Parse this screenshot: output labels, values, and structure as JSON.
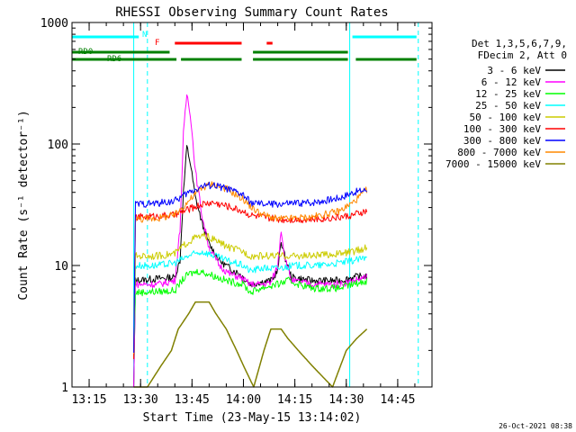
{
  "chart_data": {
    "type": "line",
    "title": "RHESSI Observing Summary Count Rates",
    "xlabel": "Start Time (23-May-15 13:14:02)",
    "ylabel": "Count Rate (s⁻¹ detector⁻¹)",
    "xlim": [
      "13:10",
      "14:55"
    ],
    "ylim": [
      1,
      1000
    ],
    "yscale": "log",
    "grid": false,
    "legend_position": "right",
    "x_ticks": [
      "13:15",
      "13:30",
      "13:45",
      "14:00",
      "14:15",
      "14:30",
      "14:45"
    ],
    "y_ticks": [
      "1",
      "10",
      "100",
      "1000"
    ],
    "timestamp": "26-Oct-2021 08:38",
    "legend_header": [
      "Det 1,3,5,6,7,9,",
      "FDecim 2, Att 0"
    ],
    "series": [
      {
        "name": "3 - 6 keV",
        "color": "#000000",
        "points": [
          [
            "13:28",
            0.9
          ],
          [
            "13:28.5",
            7.5
          ],
          [
            "13:35",
            7.8
          ],
          [
            "13:40",
            8
          ],
          [
            "13:41.5",
            11
          ],
          [
            "13:42.5",
            40
          ],
          [
            "13:43.5",
            95
          ],
          [
            "13:44.5",
            70
          ],
          [
            "13:46",
            36
          ],
          [
            "13:48",
            22
          ],
          [
            "13:50",
            15
          ],
          [
            "13:53",
            11
          ],
          [
            "13:56",
            9.5
          ],
          [
            "13:59",
            8.5
          ],
          [
            "14:02",
            7
          ],
          [
            "14:05",
            7.3
          ],
          [
            "14:08",
            7.5
          ],
          [
            "14:10",
            9
          ],
          [
            "14:11",
            16
          ],
          [
            "14:12",
            12
          ],
          [
            "14:14",
            8
          ],
          [
            "14:20",
            7.5
          ],
          [
            "14:28",
            7.5
          ],
          [
            "14:32",
            8
          ],
          [
            "14:36",
            8.2
          ]
        ]
      },
      {
        "name": "6 - 12 keV",
        "color": "#ff00ff",
        "points": [
          [
            "13:28",
            0.9
          ],
          [
            "13:28.5",
            7
          ],
          [
            "13:35",
            7
          ],
          [
            "13:40",
            7.5
          ],
          [
            "13:41.5",
            20
          ],
          [
            "13:42.5",
            120
          ],
          [
            "13:43.5",
            260
          ],
          [
            "13:44.5",
            180
          ],
          [
            "13:46",
            60
          ],
          [
            "13:48",
            25
          ],
          [
            "13:50",
            14
          ],
          [
            "13:53",
            10
          ],
          [
            "13:56",
            8.5
          ],
          [
            "13:59",
            8
          ],
          [
            "14:02",
            7
          ],
          [
            "14:05",
            7
          ],
          [
            "14:08",
            7.2
          ],
          [
            "14:10",
            10
          ],
          [
            "14:11",
            20
          ],
          [
            "14:12",
            12
          ],
          [
            "14:14",
            7.5
          ],
          [
            "14:20",
            7
          ],
          [
            "14:28",
            7
          ],
          [
            "14:32",
            7.5
          ],
          [
            "14:36",
            8
          ]
        ]
      },
      {
        "name": "12 - 25 keV",
        "color": "#00ff00",
        "points": [
          [
            "13:28",
            1.8
          ],
          [
            "13:28.5",
            6
          ],
          [
            "13:35",
            6.1
          ],
          [
            "13:40",
            6.2
          ],
          [
            "13:42",
            7.5
          ],
          [
            "13:44",
            8.5
          ],
          [
            "13:47",
            9
          ],
          [
            "13:50",
            8.5
          ],
          [
            "13:55",
            7.5
          ],
          [
            "14:00",
            7
          ],
          [
            "14:02",
            6
          ],
          [
            "14:05",
            6.5
          ],
          [
            "14:10",
            7
          ],
          [
            "14:13",
            7.5
          ],
          [
            "14:20",
            6.5
          ],
          [
            "14:28",
            6.5
          ],
          [
            "14:32",
            7
          ],
          [
            "14:36",
            7.5
          ]
        ]
      },
      {
        "name": "25 - 50 keV",
        "color": "#00ffff",
        "points": [
          [
            "13:28",
            1.8
          ],
          [
            "13:28.5",
            10
          ],
          [
            "13:35",
            10
          ],
          [
            "13:40",
            10.5
          ],
          [
            "13:44",
            12
          ],
          [
            "13:48",
            13
          ],
          [
            "13:50",
            12.5
          ],
          [
            "13:55",
            11
          ],
          [
            "14:00",
            10
          ],
          [
            "14:02",
            9
          ],
          [
            "14:05",
            9.5
          ],
          [
            "14:10",
            9.5
          ],
          [
            "14:15",
            10
          ],
          [
            "14:22",
            10
          ],
          [
            "14:28",
            10.5
          ],
          [
            "14:32",
            11
          ],
          [
            "14:36",
            11.5
          ]
        ]
      },
      {
        "name": "50 - 100 keV",
        "color": "#cccc00",
        "points": [
          [
            "13:28",
            1.8
          ],
          [
            "13:28.5",
            12
          ],
          [
            "13:35",
            12
          ],
          [
            "13:40",
            12.5
          ],
          [
            "13:43",
            15
          ],
          [
            "13:46",
            17
          ],
          [
            "13:49",
            17.5
          ],
          [
            "13:52",
            16
          ],
          [
            "13:56",
            14
          ],
          [
            "14:00",
            13
          ],
          [
            "14:02",
            12
          ],
          [
            "14:05",
            12
          ],
          [
            "14:10",
            12
          ],
          [
            "14:20",
            12
          ],
          [
            "14:28",
            12.5
          ],
          [
            "14:32",
            13
          ],
          [
            "14:36",
            14
          ]
        ]
      },
      {
        "name": "100 - 300 keV",
        "color": "#ff0000",
        "points": [
          [
            "13:28",
            1.8
          ],
          [
            "13:28.5",
            25
          ],
          [
            "13:35",
            25.5
          ],
          [
            "13:40",
            26
          ],
          [
            "13:44",
            29
          ],
          [
            "13:48",
            32
          ],
          [
            "13:51",
            33
          ],
          [
            "13:55",
            31
          ],
          [
            "14:00",
            28
          ],
          [
            "14:02",
            26
          ],
          [
            "14:05",
            25
          ],
          [
            "14:10",
            24
          ],
          [
            "14:20",
            24
          ],
          [
            "14:28",
            25
          ],
          [
            "14:32",
            26
          ],
          [
            "14:36",
            28
          ]
        ]
      },
      {
        "name": "300 - 800 keV",
        "color": "#0000ff",
        "points": [
          [
            "13:28",
            1.8
          ],
          [
            "13:28.5",
            32
          ],
          [
            "13:35",
            32.5
          ],
          [
            "13:40",
            34
          ],
          [
            "13:44",
            40
          ],
          [
            "13:48",
            45
          ],
          [
            "13:51",
            46
          ],
          [
            "13:55",
            43
          ],
          [
            "14:00",
            38
          ],
          [
            "14:02",
            33
          ],
          [
            "14:05",
            32
          ],
          [
            "14:10",
            32
          ],
          [
            "14:20",
            33
          ],
          [
            "14:28",
            36
          ],
          [
            "14:32",
            40
          ],
          [
            "14:36",
            42
          ]
        ]
      },
      {
        "name": "800 - 7000 keV",
        "color": "#ff8800",
        "points": [
          [
            "13:28",
            1.8
          ],
          [
            "13:28.5",
            24
          ],
          [
            "13:35",
            24.5
          ],
          [
            "13:40",
            26
          ],
          [
            "13:44",
            34
          ],
          [
            "13:48",
            44
          ],
          [
            "13:51",
            47
          ],
          [
            "13:55",
            43
          ],
          [
            "14:00",
            35
          ],
          [
            "14:03",
            29
          ],
          [
            "14:06",
            26
          ],
          [
            "14:10",
            24
          ],
          [
            "14:20",
            25
          ],
          [
            "14:28",
            28
          ],
          [
            "14:32",
            33
          ],
          [
            "14:36",
            42
          ]
        ]
      },
      {
        "name": "7000 - 15000 keV",
        "color": "#808000",
        "points": [
          [
            "13:28",
            0.9
          ],
          [
            "13:32",
            1
          ],
          [
            "13:36",
            1.5
          ],
          [
            "13:39",
            2
          ],
          [
            "13:41",
            3
          ],
          [
            "13:44",
            4
          ],
          [
            "13:46",
            5
          ],
          [
            "13:50",
            5
          ],
          [
            "13:52",
            4
          ],
          [
            "13:55",
            3
          ],
          [
            "13:58",
            2
          ],
          [
            "14:00",
            1.5
          ],
          [
            "14:03",
            1
          ],
          [
            "14:06",
            2
          ],
          [
            "14:08",
            3
          ],
          [
            "14:11",
            3
          ],
          [
            "14:13",
            2.5
          ],
          [
            "14:16",
            2
          ],
          [
            "14:20",
            1.5
          ],
          [
            "14:26",
            1
          ],
          [
            "14:30",
            2
          ],
          [
            "14:33",
            2.5
          ],
          [
            "14:36",
            3
          ]
        ]
      }
    ],
    "flag_bars": [
      {
        "label": "N",
        "color": "#00ffff",
        "segments": [
          [
            "13:10",
            "13:30"
          ],
          [
            "14:31",
            "14:51"
          ]
        ]
      },
      {
        "label": "F",
        "color": "#ff0000",
        "segments": [
          [
            "13:40",
            "14:00"
          ],
          [
            "14:06",
            "14:09"
          ]
        ]
      },
      {
        "label": "RD0",
        "color": "#008000",
        "segments": [
          [
            "13:10",
            "13:39"
          ],
          [
            "14:02",
            "14:31"
          ]
        ]
      },
      {
        "label": "RD6",
        "color": "#008000",
        "segments": [
          [
            "13:10",
            "13:41"
          ],
          [
            "13:41",
            "14:00"
          ],
          [
            "14:02",
            "14:31"
          ],
          [
            "14:32",
            "14:51"
          ]
        ]
      }
    ],
    "vertical_markers": [
      {
        "time": "13:28",
        "color": "#00ffff",
        "style": "solid"
      },
      {
        "time": "13:32",
        "color": "#00ffff",
        "style": "dashed"
      },
      {
        "time": "14:31",
        "color": "#00ffff",
        "style": "solid"
      },
      {
        "time": "14:51",
        "color": "#00ffff",
        "style": "dashed"
      }
    ]
  }
}
